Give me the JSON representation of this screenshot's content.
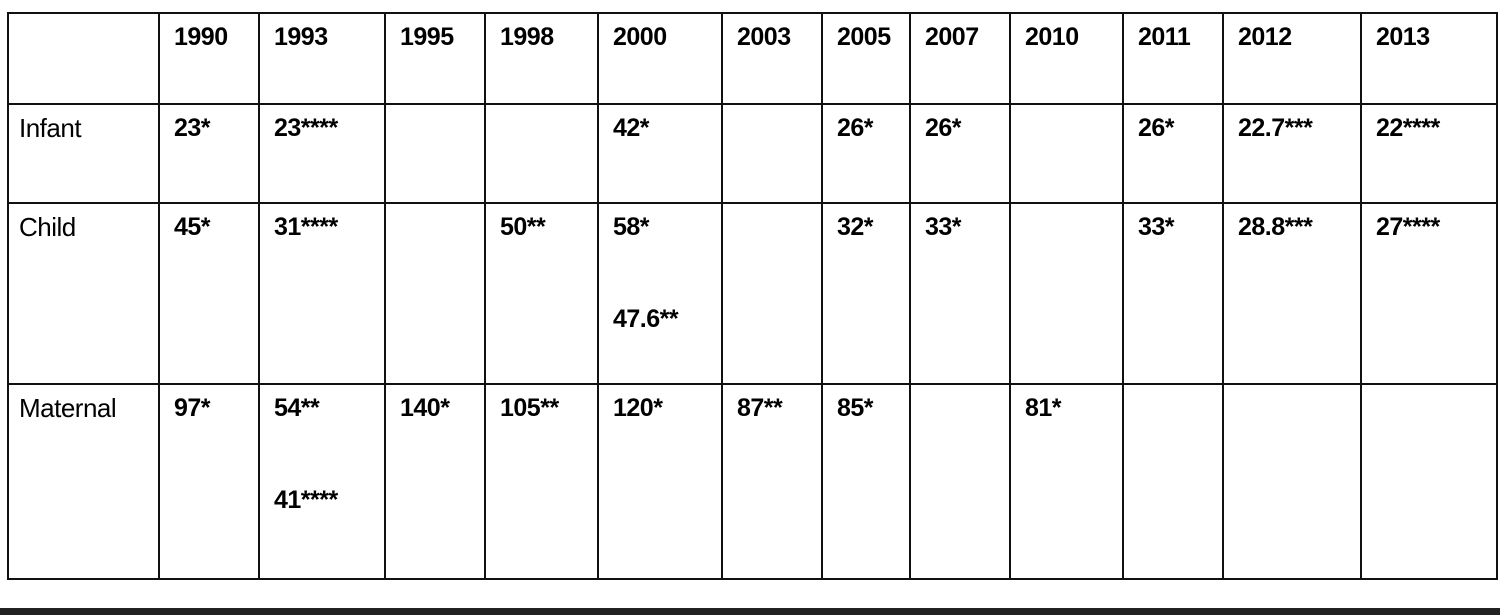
{
  "table": {
    "corner": "",
    "columns": [
      "1990",
      "1993",
      "1995",
      "1998",
      "2000",
      "2003",
      "2005",
      "2007",
      "2010",
      "2011",
      "2012",
      "2013"
    ],
    "rows": [
      {
        "label": "Infant",
        "cells": [
          [
            "23*"
          ],
          [
            "23****"
          ],
          [],
          [],
          [
            "42*"
          ],
          [],
          [
            "26*"
          ],
          [
            "26*"
          ],
          [],
          [
            "26*"
          ],
          [
            "22.7***"
          ],
          [
            "22****"
          ]
        ]
      },
      {
        "label": "Child",
        "cells": [
          [
            "45*"
          ],
          [
            "31****"
          ],
          [],
          [
            "50**"
          ],
          [
            "58*",
            "47.6**"
          ],
          [],
          [
            "32*"
          ],
          [
            "33*"
          ],
          [],
          [
            "33*"
          ],
          [
            "28.8***"
          ],
          [
            "27****"
          ]
        ]
      },
      {
        "label": "Maternal",
        "cells": [
          [
            "97*"
          ],
          [
            "54**",
            "41****"
          ],
          [
            "140*"
          ],
          [
            "105**"
          ],
          [
            "120*"
          ],
          [
            "87**"
          ],
          [
            "85*"
          ],
          [],
          [
            "81*"
          ],
          [],
          [],
          []
        ]
      }
    ]
  }
}
